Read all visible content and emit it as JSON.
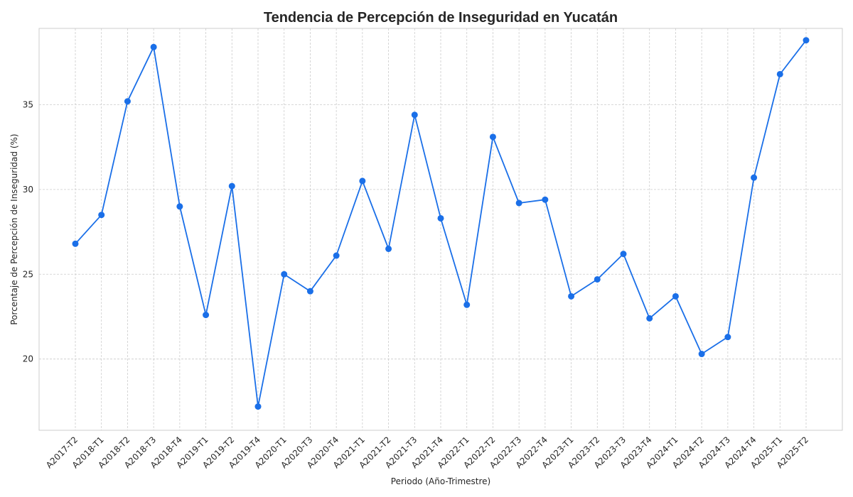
{
  "chart_data": {
    "type": "line",
    "title": "Tendencia de Percepción de Inseguridad en Yucatán",
    "xlabel": "Periodo (Año-Trimestre)",
    "ylabel": "Porcentaje de Percepción de Inseguridad (%)",
    "categories": [
      "A2017-T2",
      "A2018-T1",
      "A2018-T2",
      "A2018-T3",
      "A2018-T4",
      "A2019-T1",
      "A2019-T2",
      "A2019-T4",
      "A2020-T1",
      "A2020-T3",
      "A2020-T4",
      "A2021-T1",
      "A2021-T2",
      "A2021-T3",
      "A2021-T4",
      "A2022-T1",
      "A2022-T2",
      "A2022-T3",
      "A2022-T4",
      "A2023-T1",
      "A2023-T2",
      "A2023-T3",
      "A2023-T4",
      "A2024-T1",
      "A2024-T2",
      "A2024-T3",
      "A2024-T4",
      "A2025-T1",
      "A2025-T2"
    ],
    "series": [
      {
        "values": [
          26.8,
          28.5,
          35.2,
          38.4,
          29.0,
          22.6,
          30.2,
          17.2,
          25.0,
          24.0,
          26.1,
          30.5,
          26.5,
          34.4,
          28.3,
          23.2,
          33.1,
          29.2,
          29.4,
          23.7,
          24.7,
          26.2,
          22.4,
          23.7,
          20.3,
          21.3,
          30.7,
          36.8,
          38.8
        ],
        "color": "#1a6fe8"
      }
    ],
    "ylim": [
      15.8,
      39.5
    ],
    "yticks": [
      20,
      25,
      30,
      35
    ],
    "grid": true,
    "legend": "none"
  }
}
